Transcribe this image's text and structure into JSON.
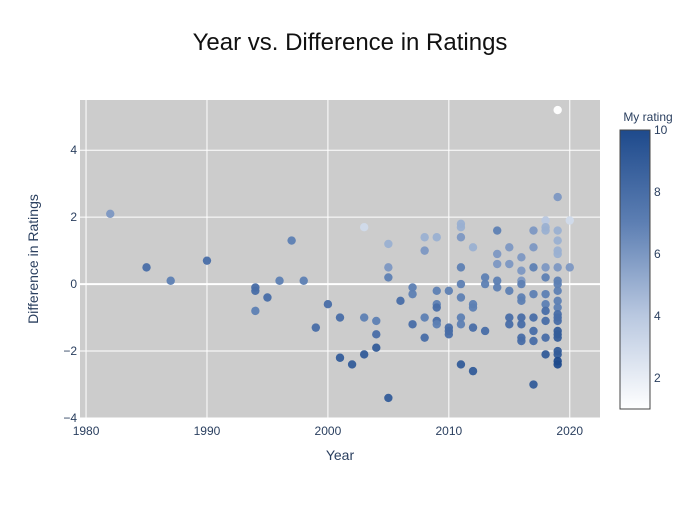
{
  "chart_data": {
    "type": "scatter",
    "title": "Year vs. Difference in Ratings",
    "xlabel": "Year",
    "ylabel": "Difference in Ratings",
    "xlim": [
      1979.5,
      2022.5
    ],
    "ylim": [
      -4,
      5.5
    ],
    "xticks": [
      1980,
      1990,
      2000,
      2010,
      2020
    ],
    "xtick_labels": [
      "1980",
      "1990",
      "2000",
      "2010",
      "2020"
    ],
    "yticks": [
      -4,
      -2,
      0,
      2,
      4
    ],
    "ytick_labels": [
      "−4",
      "−2",
      "0",
      "2",
      "4"
    ],
    "grid": true,
    "colorbar": {
      "title": "My rating",
      "range": [
        1,
        10
      ],
      "ticks": [
        2,
        4,
        6,
        8,
        10
      ],
      "tick_labels": [
        "2",
        "4",
        "6",
        "8",
        "10"
      ],
      "colors": [
        "#ffffff",
        "#b9c8e0",
        "#5d7fb3",
        "#1e4a8c"
      ]
    },
    "colors": {
      "plot_bg": "#cccccc",
      "grid": "#ffffff",
      "text": "#2a3f5f"
    },
    "points": [
      {
        "x": 1982,
        "y": 2.1,
        "c": 6
      },
      {
        "x": 1985,
        "y": 0.5,
        "c": 8
      },
      {
        "x": 1987,
        "y": 0.1,
        "c": 7
      },
      {
        "x": 1990,
        "y": 0.7,
        "c": 8
      },
      {
        "x": 1994,
        "y": -0.1,
        "c": 8
      },
      {
        "x": 1994,
        "y": -0.2,
        "c": 8
      },
      {
        "x": 1994,
        "y": -0.8,
        "c": 7
      },
      {
        "x": 1995,
        "y": -0.4,
        "c": 8
      },
      {
        "x": 1996,
        "y": 0.1,
        "c": 7
      },
      {
        "x": 1997,
        "y": 1.3,
        "c": 7
      },
      {
        "x": 1998,
        "y": 0.1,
        "c": 7
      },
      {
        "x": 1999,
        "y": -1.3,
        "c": 8
      },
      {
        "x": 2000,
        "y": -0.6,
        "c": 8
      },
      {
        "x": 2001,
        "y": -1.0,
        "c": 8
      },
      {
        "x": 2001,
        "y": -2.2,
        "c": 9
      },
      {
        "x": 2002,
        "y": -2.4,
        "c": 9
      },
      {
        "x": 2003,
        "y": 1.7,
        "c": 3
      },
      {
        "x": 2003,
        "y": -1.0,
        "c": 7
      },
      {
        "x": 2003,
        "y": -2.1,
        "c": 9
      },
      {
        "x": 2004,
        "y": -1.1,
        "c": 7
      },
      {
        "x": 2004,
        "y": -1.5,
        "c": 8
      },
      {
        "x": 2004,
        "y": -1.9,
        "c": 9
      },
      {
        "x": 2005,
        "y": 1.2,
        "c": 5
      },
      {
        "x": 2005,
        "y": 0.5,
        "c": 6
      },
      {
        "x": 2005,
        "y": 0.2,
        "c": 7
      },
      {
        "x": 2005,
        "y": -3.4,
        "c": 9
      },
      {
        "x": 2006,
        "y": -0.5,
        "c": 8
      },
      {
        "x": 2007,
        "y": -0.1,
        "c": 7
      },
      {
        "x": 2007,
        "y": -0.3,
        "c": 7
      },
      {
        "x": 2007,
        "y": -1.2,
        "c": 8
      },
      {
        "x": 2008,
        "y": 1.4,
        "c": 5
      },
      {
        "x": 2008,
        "y": 1.0,
        "c": 6
      },
      {
        "x": 2008,
        "y": -1.0,
        "c": 7
      },
      {
        "x": 2008,
        "y": -1.6,
        "c": 8
      },
      {
        "x": 2009,
        "y": 1.4,
        "c": 5
      },
      {
        "x": 2009,
        "y": -0.2,
        "c": 7
      },
      {
        "x": 2009,
        "y": -0.6,
        "c": 7
      },
      {
        "x": 2009,
        "y": -0.7,
        "c": 8
      },
      {
        "x": 2009,
        "y": -1.1,
        "c": 8
      },
      {
        "x": 2009,
        "y": -1.2,
        "c": 7
      },
      {
        "x": 2010,
        "y": -0.2,
        "c": 7
      },
      {
        "x": 2010,
        "y": -1.3,
        "c": 8
      },
      {
        "x": 2010,
        "y": -1.4,
        "c": 8
      },
      {
        "x": 2010,
        "y": -1.5,
        "c": 8
      },
      {
        "x": 2011,
        "y": 1.8,
        "c": 5
      },
      {
        "x": 2011,
        "y": 1.7,
        "c": 5
      },
      {
        "x": 2011,
        "y": 1.4,
        "c": 6
      },
      {
        "x": 2011,
        "y": 0.5,
        "c": 7
      },
      {
        "x": 2011,
        "y": 0.0,
        "c": 7
      },
      {
        "x": 2011,
        "y": -0.4,
        "c": 7
      },
      {
        "x": 2011,
        "y": -1.0,
        "c": 7
      },
      {
        "x": 2011,
        "y": -1.2,
        "c": 7
      },
      {
        "x": 2011,
        "y": -2.4,
        "c": 9
      },
      {
        "x": 2012,
        "y": 1.1,
        "c": 5
      },
      {
        "x": 2012,
        "y": -0.6,
        "c": 7
      },
      {
        "x": 2012,
        "y": -0.7,
        "c": 7
      },
      {
        "x": 2012,
        "y": -1.3,
        "c": 8
      },
      {
        "x": 2012,
        "y": -2.6,
        "c": 9
      },
      {
        "x": 2013,
        "y": 0.2,
        "c": 7
      },
      {
        "x": 2013,
        "y": 0.0,
        "c": 7
      },
      {
        "x": 2013,
        "y": -1.4,
        "c": 8
      },
      {
        "x": 2014,
        "y": 1.6,
        "c": 7
      },
      {
        "x": 2014,
        "y": 0.9,
        "c": 6
      },
      {
        "x": 2014,
        "y": 0.6,
        "c": 6
      },
      {
        "x": 2014,
        "y": 0.1,
        "c": 7
      },
      {
        "x": 2014,
        "y": -0.1,
        "c": 7
      },
      {
        "x": 2015,
        "y": 1.1,
        "c": 6
      },
      {
        "x": 2015,
        "y": 0.6,
        "c": 6
      },
      {
        "x": 2015,
        "y": -0.2,
        "c": 7
      },
      {
        "x": 2015,
        "y": -1.0,
        "c": 8
      },
      {
        "x": 2015,
        "y": -1.2,
        "c": 8
      },
      {
        "x": 2016,
        "y": 0.8,
        "c": 6
      },
      {
        "x": 2016,
        "y": 0.4,
        "c": 6
      },
      {
        "x": 2016,
        "y": 0.1,
        "c": 6
      },
      {
        "x": 2016,
        "y": 0.0,
        "c": 7
      },
      {
        "x": 2016,
        "y": -0.4,
        "c": 7
      },
      {
        "x": 2016,
        "y": -0.5,
        "c": 7
      },
      {
        "x": 2016,
        "y": -1.0,
        "c": 8
      },
      {
        "x": 2016,
        "y": -1.2,
        "c": 8
      },
      {
        "x": 2016,
        "y": -1.6,
        "c": 8
      },
      {
        "x": 2016,
        "y": -1.7,
        "c": 8
      },
      {
        "x": 2017,
        "y": 1.6,
        "c": 6
      },
      {
        "x": 2017,
        "y": 1.1,
        "c": 6
      },
      {
        "x": 2017,
        "y": 0.5,
        "c": 7
      },
      {
        "x": 2017,
        "y": -0.3,
        "c": 7
      },
      {
        "x": 2017,
        "y": -1.0,
        "c": 8
      },
      {
        "x": 2017,
        "y": -1.4,
        "c": 8
      },
      {
        "x": 2017,
        "y": -1.7,
        "c": 8
      },
      {
        "x": 2017,
        "y": -3.0,
        "c": 9
      },
      {
        "x": 2018,
        "y": 1.9,
        "c": 4
      },
      {
        "x": 2018,
        "y": 1.7,
        "c": 5
      },
      {
        "x": 2018,
        "y": 1.6,
        "c": 5
      },
      {
        "x": 2018,
        "y": 0.5,
        "c": 6
      },
      {
        "x": 2018,
        "y": 0.2,
        "c": 7
      },
      {
        "x": 2018,
        "y": -0.3,
        "c": 7
      },
      {
        "x": 2018,
        "y": -0.6,
        "c": 7
      },
      {
        "x": 2018,
        "y": -0.8,
        "c": 8
      },
      {
        "x": 2018,
        "y": -1.1,
        "c": 8
      },
      {
        "x": 2018,
        "y": -1.6,
        "c": 8
      },
      {
        "x": 2018,
        "y": -2.1,
        "c": 9
      },
      {
        "x": 2019,
        "y": 5.2,
        "c": 1
      },
      {
        "x": 2019,
        "y": 2.6,
        "c": 6
      },
      {
        "x": 2019,
        "y": 1.6,
        "c": 5
      },
      {
        "x": 2019,
        "y": 1.3,
        "c": 5
      },
      {
        "x": 2019,
        "y": 1.0,
        "c": 5
      },
      {
        "x": 2019,
        "y": 0.9,
        "c": 5
      },
      {
        "x": 2019,
        "y": 0.5,
        "c": 6
      },
      {
        "x": 2019,
        "y": 0.1,
        "c": 7
      },
      {
        "x": 2019,
        "y": 0.0,
        "c": 7
      },
      {
        "x": 2019,
        "y": -0.2,
        "c": 7
      },
      {
        "x": 2019,
        "y": -0.5,
        "c": 7
      },
      {
        "x": 2019,
        "y": -0.7,
        "c": 7
      },
      {
        "x": 2019,
        "y": -0.9,
        "c": 8
      },
      {
        "x": 2019,
        "y": -1.0,
        "c": 8
      },
      {
        "x": 2019,
        "y": -1.1,
        "c": 8
      },
      {
        "x": 2019,
        "y": -1.4,
        "c": 9
      },
      {
        "x": 2019,
        "y": -1.5,
        "c": 9
      },
      {
        "x": 2019,
        "y": -1.6,
        "c": 9
      },
      {
        "x": 2019,
        "y": -2.0,
        "c": 9
      },
      {
        "x": 2019,
        "y": -2.1,
        "c": 9
      },
      {
        "x": 2019,
        "y": -2.3,
        "c": 10
      },
      {
        "x": 2019,
        "y": -2.4,
        "c": 10
      },
      {
        "x": 2020,
        "y": 1.9,
        "c": 3
      },
      {
        "x": 2020,
        "y": 0.5,
        "c": 6
      }
    ]
  }
}
